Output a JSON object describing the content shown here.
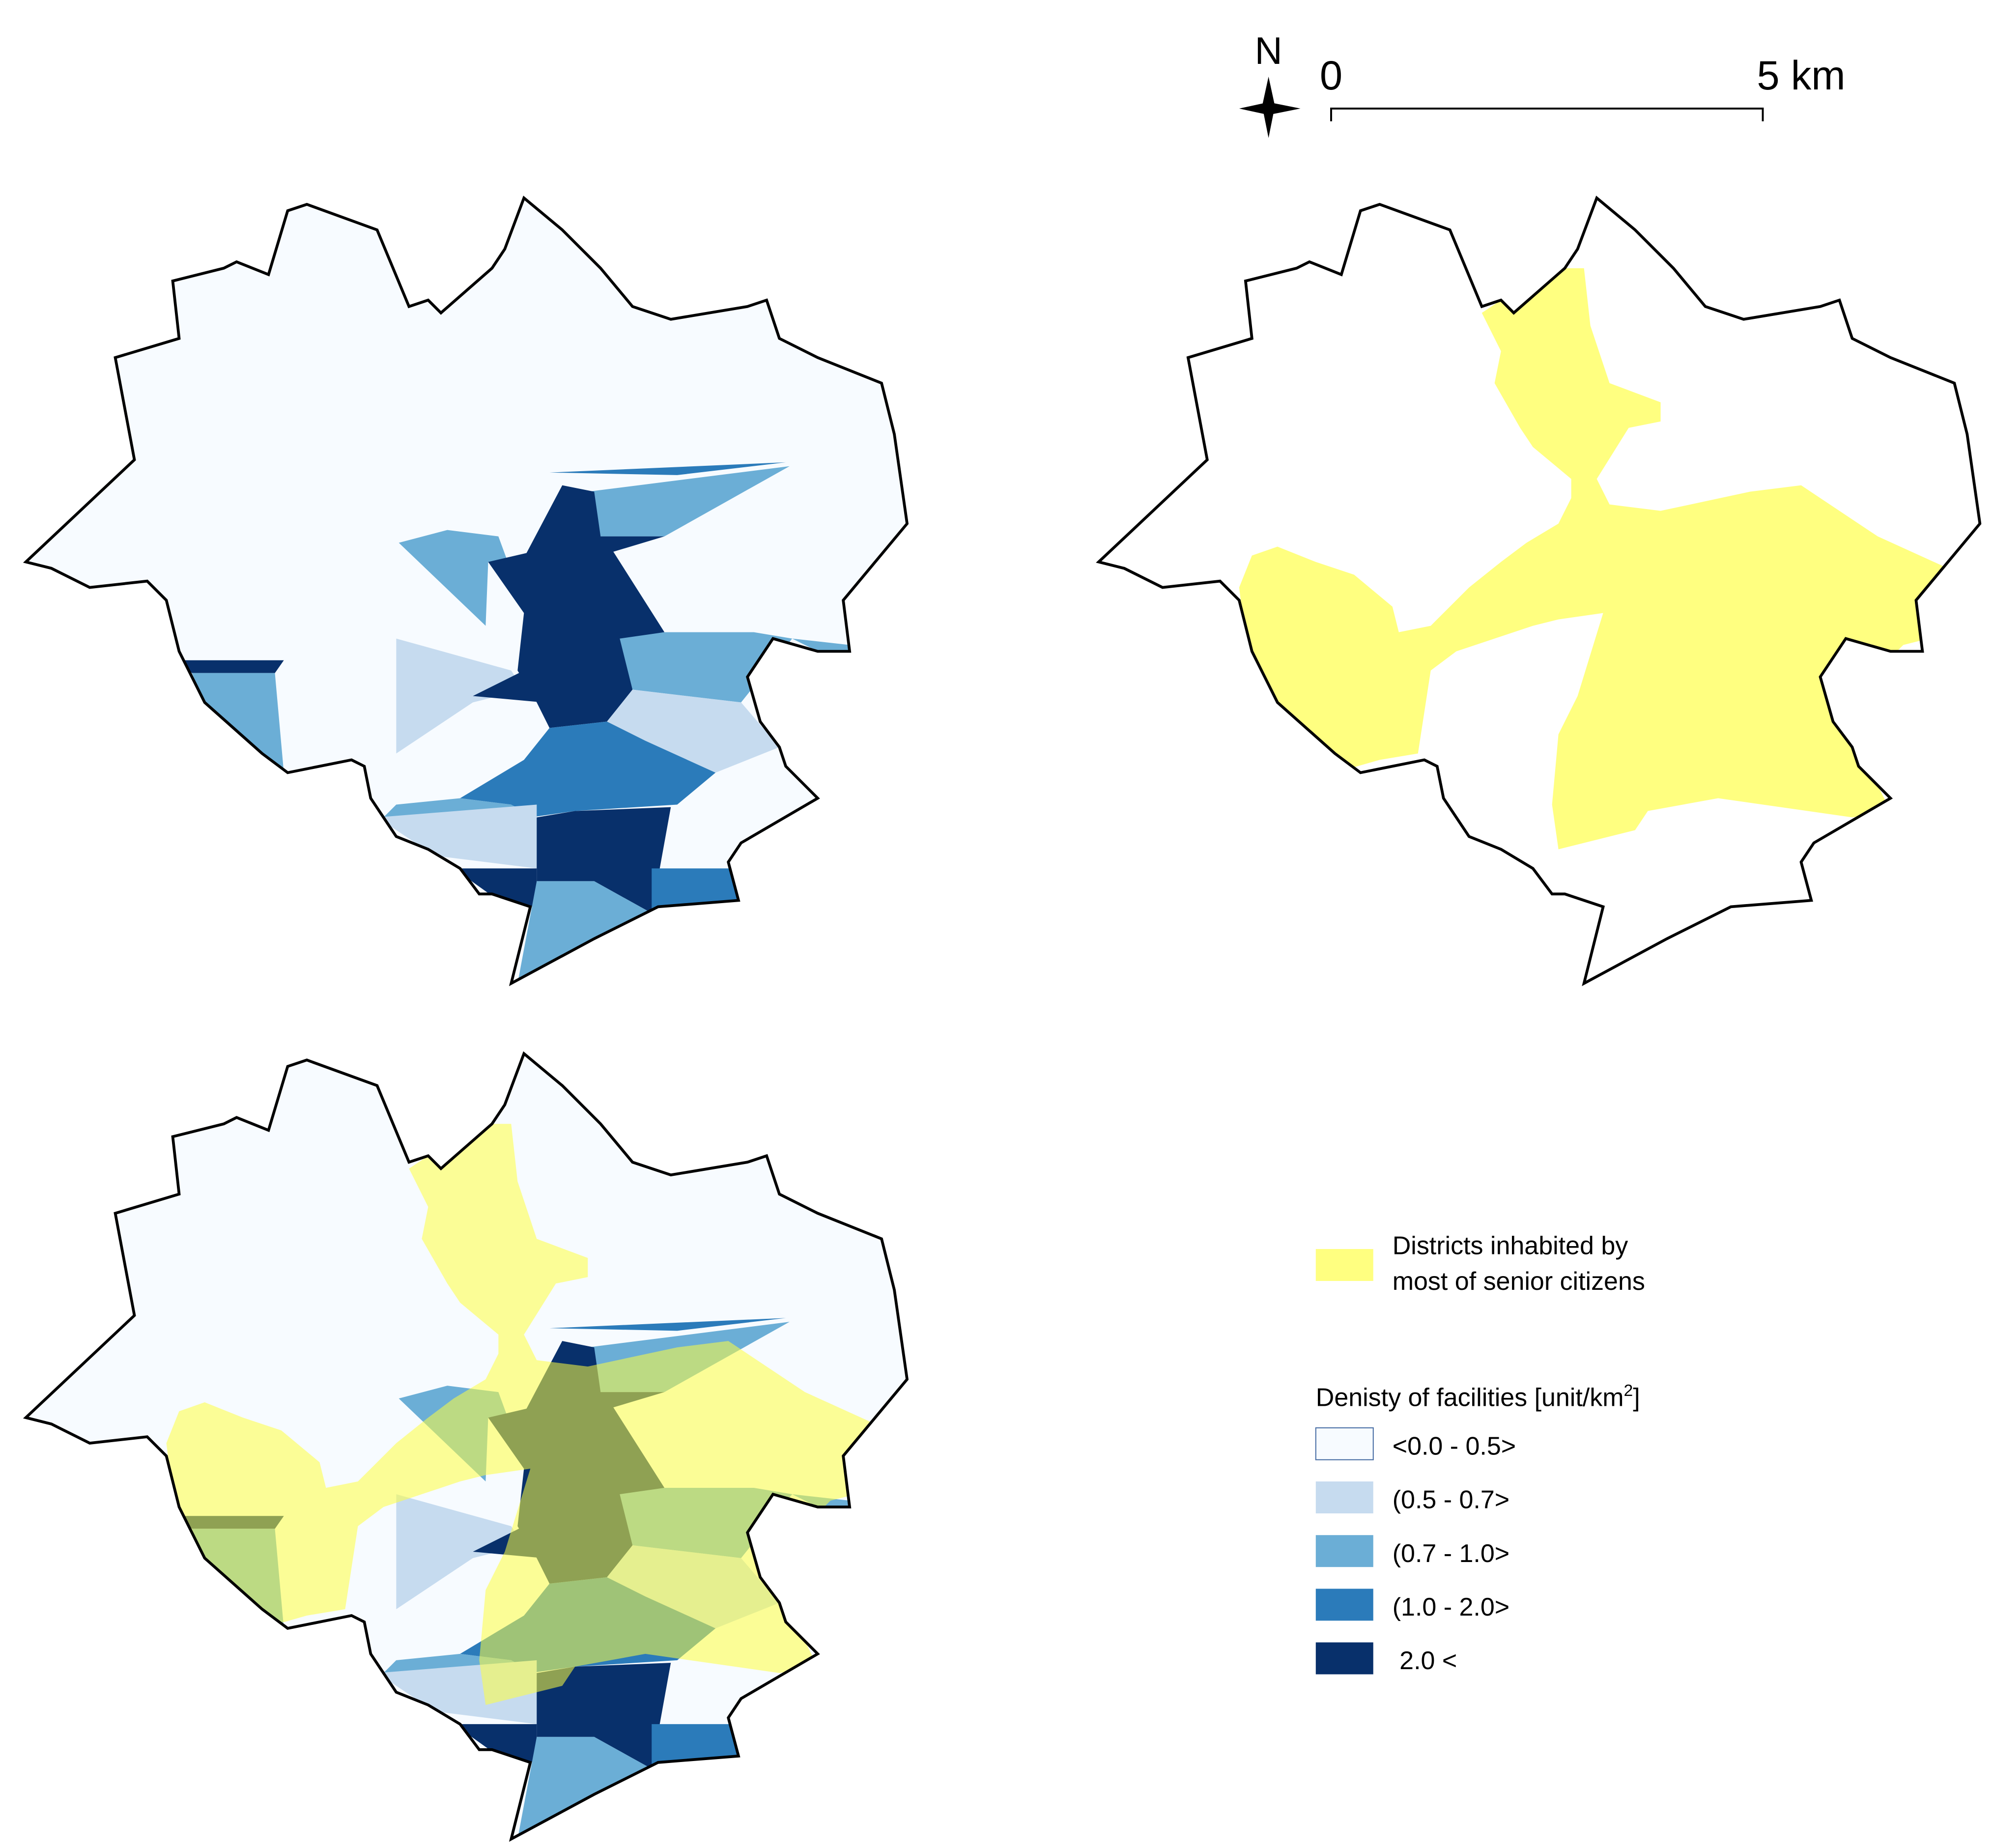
{
  "north_arrow": {
    "label": "N"
  },
  "scale_bar": {
    "start_label": "0",
    "end_label": "5 km"
  },
  "legend": {
    "senior_label_line1": "Districts inhabited by",
    "senior_label_line2": "most of senior citizens",
    "density_title": "Denisty of facilities [unit/km",
    "density_title_sup": "2",
    "density_title_end": "]",
    "classes": [
      {
        "label": "<0.0 - 0.5>",
        "color": "#f7fbff"
      },
      {
        "label": "(0.5 - 0.7>",
        "color": "#c6dbef"
      },
      {
        "label": "(0.7 - 1.0>",
        "color": "#6baed6"
      },
      {
        "label": "(1.0 - 2.0>",
        "color": "#2b7bba"
      },
      {
        "label": " 2.0 <",
        "color": "#08306b"
      }
    ],
    "senior_color": "#ffff80"
  }
}
